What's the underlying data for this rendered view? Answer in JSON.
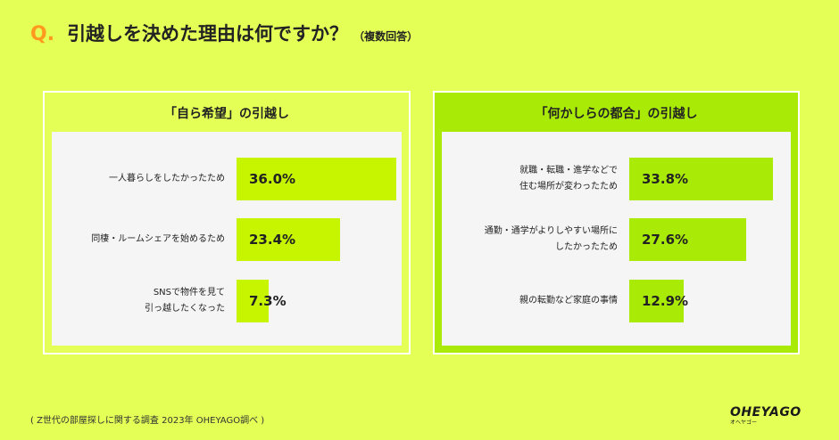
{
  "question": {
    "mark": "Q.",
    "text": "引越しを決めた理由は何ですか？",
    "note": "（複数回答）"
  },
  "colors": {
    "background": "#e4ff55",
    "accent_orange": "#ff9a1e",
    "bar_yellow_green": "#c7f500",
    "bar_green": "#aaea07"
  },
  "footer": {
    "source": "( Z世代の部屋探しに関する調査 2023年 OHEYAGO調べ )",
    "logo": "OHEYAGO",
    "logo_sub": "オヘヤゴー"
  },
  "chart_data": [
    {
      "type": "bar",
      "orientation": "horizontal",
      "title": "「自ら希望」の引越し",
      "unit": "%",
      "xlim": [
        0,
        40
      ],
      "categories": [
        "一人暮らしをしたかったため",
        "同棲・ルームシェアを始めるため",
        "SNSで物件を見て\n引っ越したくなった"
      ],
      "values": [
        36.0,
        23.4,
        7.3
      ],
      "labels": [
        "36.0%",
        "23.4%",
        "7.3%"
      ]
    },
    {
      "type": "bar",
      "orientation": "horizontal",
      "title": "「何かしらの都合」の引越し",
      "unit": "%",
      "xlim": [
        0,
        40
      ],
      "categories": [
        "就職・転職・進学などで\n住む場所が変わったため",
        "通勤・通学がよりしやすい場所に\nしたかったため",
        "親の転勤など家庭の事情"
      ],
      "values": [
        33.8,
        27.6,
        12.9
      ],
      "labels": [
        "33.8%",
        "27.6%",
        "12.9%"
      ]
    }
  ]
}
